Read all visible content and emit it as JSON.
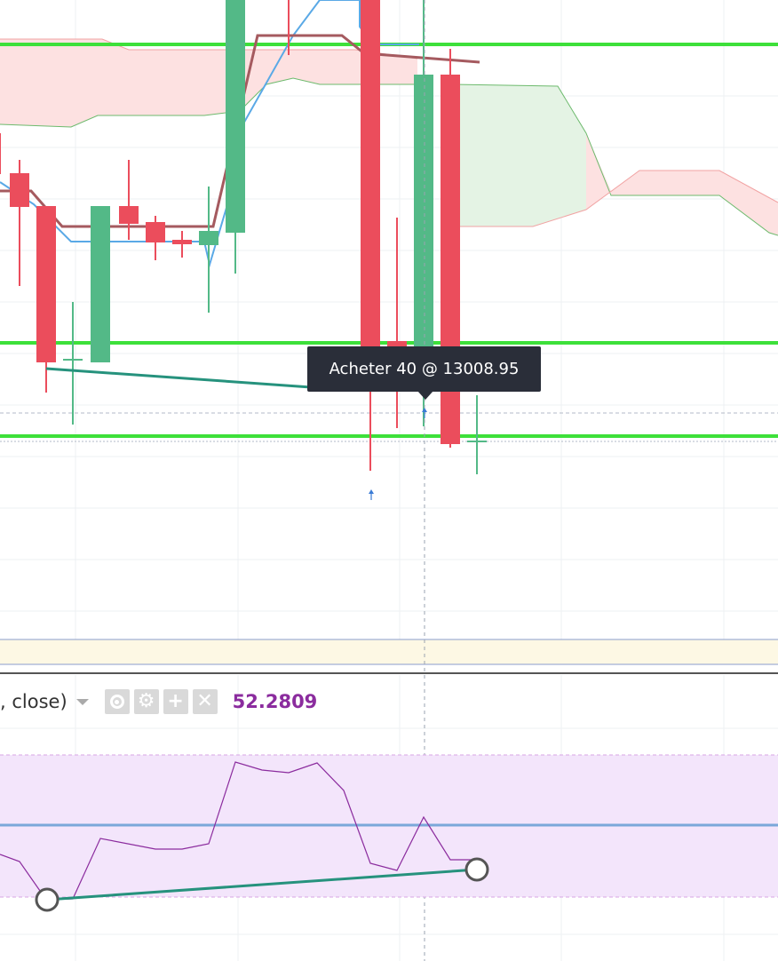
{
  "chart_data": [
    {
      "type": "candlestick",
      "title": "",
      "y_range": [
        12650,
        13650
      ],
      "px_per_unit": 0.95,
      "visible_candles": 19,
      "candles": [
        {
          "x": 0,
          "open": 13425,
          "high": 13455,
          "low": 13345,
          "close": 13378,
          "direction": "down"
        },
        {
          "x": 1,
          "open": 13378,
          "high": 13410,
          "low": 13200,
          "close": 13340,
          "direction": "down"
        },
        {
          "x": 2,
          "open": 13340,
          "high": 13340,
          "low": 12960,
          "close": 13045,
          "direction": "down"
        },
        {
          "x": 3,
          "open": 13050,
          "high": 13160,
          "low": 12935,
          "close": 13050,
          "direction": "up"
        },
        {
          "x": 4,
          "open": 13045,
          "high": 13340,
          "low": 13045,
          "close": 13340,
          "direction": "up"
        },
        {
          "x": 5,
          "open": 13340,
          "high": 13400,
          "low": 13290,
          "close": 13318,
          "direction": "down"
        },
        {
          "x": 6,
          "open": 13310,
          "high": 13325,
          "low": 13255,
          "close": 13285,
          "direction": "down"
        },
        {
          "x": 7,
          "open": 13290,
          "high": 13312,
          "low": 13262,
          "close": 13285,
          "direction": "down"
        },
        {
          "x": 8,
          "open": 13285,
          "high": 13355,
          "low": 13165,
          "close": 13300,
          "direction": "up"
        },
        {
          "x": 9,
          "open": 13300,
          "high": 13580,
          "low": 13220,
          "close": 13580,
          "direction": "up"
        },
        {
          "x": 10,
          "open": 13580,
          "high": 13650,
          "low": 13560,
          "close": 13620,
          "direction": "up"
        },
        {
          "x": 11,
          "open": 13630,
          "high": 13650,
          "low": 13590,
          "close": 13640,
          "direction": "up"
        },
        {
          "x": 12,
          "open": 13580,
          "high": 13650,
          "low": 12990,
          "close": 13008.95,
          "direction": "down"
        },
        {
          "x": 13,
          "open": 13010,
          "high": 13220,
          "low": 12980,
          "close": 13008,
          "direction": "down"
        },
        {
          "x": 14,
          "open": 13008.95,
          "high": 13650,
          "low": 12980,
          "close": 13430,
          "direction": "up"
        },
        {
          "x": 15,
          "open": 13430,
          "high": 13450,
          "low": 12955,
          "close": 12960,
          "direction": "down"
        },
        {
          "x": 16,
          "open": 12970,
          "high": 13060,
          "low": 12925,
          "close": 12960,
          "direction": "up"
        }
      ],
      "support_resistance_lines": [
        13455,
        13100,
        12960
      ],
      "ichimoku": {
        "conversion_line": [
          13365,
          13340,
          13330,
          13285,
          13285,
          13285,
          13285,
          13285,
          13285,
          13430,
          13610,
          13620,
          13620,
          13600,
          13600,
          13595,
          13590
        ],
        "base_line": [
          13355,
          13340,
          13310,
          13300,
          13295,
          13290,
          13285,
          13285,
          13280,
          13400,
          13555,
          13555,
          13555,
          13540,
          13540,
          13535
        ],
        "cloud_span_a": [
          13455,
          13455,
          13455,
          13455,
          13450,
          13445,
          13445,
          13445,
          13445,
          13445,
          13445,
          13445,
          13445,
          13440,
          13440,
          13420,
          13410,
          13410,
          13400,
          13380
        ],
        "cloud_span_b": [
          13390,
          13390,
          13395,
          13395,
          13400,
          13400,
          13400,
          13405,
          13405,
          13420,
          13470,
          13500,
          13500,
          13500,
          13500,
          13500,
          13500,
          13500,
          13500,
          13500
        ],
        "future_span_a": [
          13500,
          13500,
          13500,
          13500,
          13500,
          13500,
          13420,
          13280,
          13270,
          13270,
          13270,
          13270,
          13270,
          13240
        ],
        "future_span_b": [
          13300,
          13300,
          13300,
          13300,
          13305,
          13315,
          13320,
          13285,
          13305,
          13305,
          13305,
          13305,
          13265,
          13210
        ]
      },
      "markers": [
        {
          "label": "Acheter 40 @ 13008.95",
          "candle": 14,
          "price": 13008.95
        }
      ]
    },
    {
      "type": "line",
      "title": "",
      "y_range": [
        0,
        100
      ],
      "bands": {
        "upper": 70,
        "lower": 30,
        "mid": 50
      },
      "x": [
        0,
        1,
        2,
        3,
        4,
        5,
        6,
        7,
        8,
        9,
        10,
        11,
        12,
        13,
        14,
        15,
        16,
        17
      ],
      "series": [
        {
          "values": [
            48,
            40,
            26,
            28,
            53,
            50,
            48,
            48,
            51,
            73,
            71,
            70,
            73,
            57,
            40,
            38,
            55,
            46
          ]
        }
      ],
      "divergence_line": {
        "from": [
          1,
          29
        ],
        "to": [
          16,
          43
        ]
      }
    }
  ],
  "indicator_legend": {
    "title": ", close)",
    "value": "52.2809",
    "buttons": [
      "eye-icon",
      "gear-icon",
      "plus-icon",
      "close-icon"
    ]
  },
  "tooltip": {
    "text": "Acheter 40 @ 13008.95"
  },
  "colors": {
    "up": "#53b987",
    "down": "#eb4d5c",
    "support_line": "#3de03a",
    "conversion": "#5aa9e6",
    "base": "#a55a5f",
    "cloud_red": "#fde1e1",
    "cloud_green": "#e4f3e4",
    "rsi": "#8b2c9e",
    "rsi_band": "#f3e5fb",
    "trend": "#26927d"
  }
}
